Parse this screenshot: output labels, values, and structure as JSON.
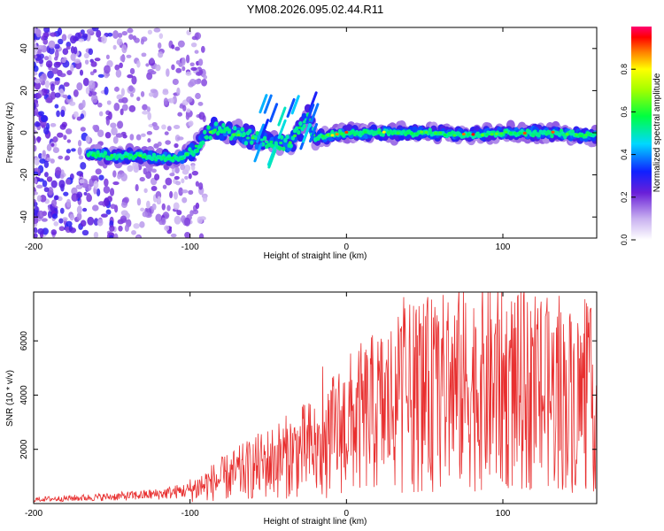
{
  "figure": {
    "title": "YM08.2026.095.02.44.R11"
  },
  "chart_data": [
    {
      "type": "heatmap",
      "title": "YM08.2026.095.02.44.R11",
      "xlabel": "Height of straight line (km)",
      "ylabel": "Frequency (Hz)",
      "xlim": [
        -200,
        160
      ],
      "ylim": [
        -50,
        50
      ],
      "xticks": [
        -200,
        -100,
        0,
        100
      ],
      "yticks": [
        -40,
        -20,
        0,
        20,
        40
      ],
      "colorbar": {
        "label": "Normalized spectral amplitude",
        "range": [
          0,
          1
        ],
        "ticks": [
          0.0,
          0.2,
          0.4,
          0.6,
          0.8
        ]
      },
      "ridge": {
        "description": "Dominant frequency ridge vs height",
        "x": [
          -165,
          -150,
          -135,
          -120,
          -105,
          -95,
          -85,
          -75,
          -65,
          -55,
          -45,
          -35,
          -25,
          -20,
          -10,
          0,
          25,
          50,
          75,
          100,
          125,
          150,
          160
        ],
        "y": [
          -10,
          -11,
          -11,
          -12,
          -12,
          -6,
          2,
          0,
          -2,
          -3,
          -5,
          -4,
          8,
          -3,
          -1,
          0,
          0,
          0,
          -1,
          0,
          0,
          -1,
          -1
        ]
      }
    },
    {
      "type": "line",
      "xlabel": "Height of straight line (km)",
      "ylabel": "SNR (10 * v/v)",
      "xlim": [
        -200,
        160
      ],
      "ylim": [
        0,
        7800
      ],
      "xticks": [
        -200,
        -100,
        0,
        100
      ],
      "yticks": [
        2000,
        4000,
        6000
      ],
      "series": [
        {
          "name": "SNR",
          "color": "#e83030",
          "envelope_x": [
            -200,
            -150,
            -120,
            -100,
            -80,
            -60,
            -40,
            -30,
            -20,
            -15,
            -10,
            0,
            20,
            40,
            60,
            80,
            100,
            120,
            140,
            160
          ],
          "envelope_y": [
            150,
            250,
            350,
            500,
            900,
            1300,
            1700,
            1900,
            2100,
            1500,
            2500,
            2900,
            3400,
            3900,
            4100,
            4300,
            4200,
            4100,
            3900,
            3800
          ]
        }
      ]
    }
  ]
}
